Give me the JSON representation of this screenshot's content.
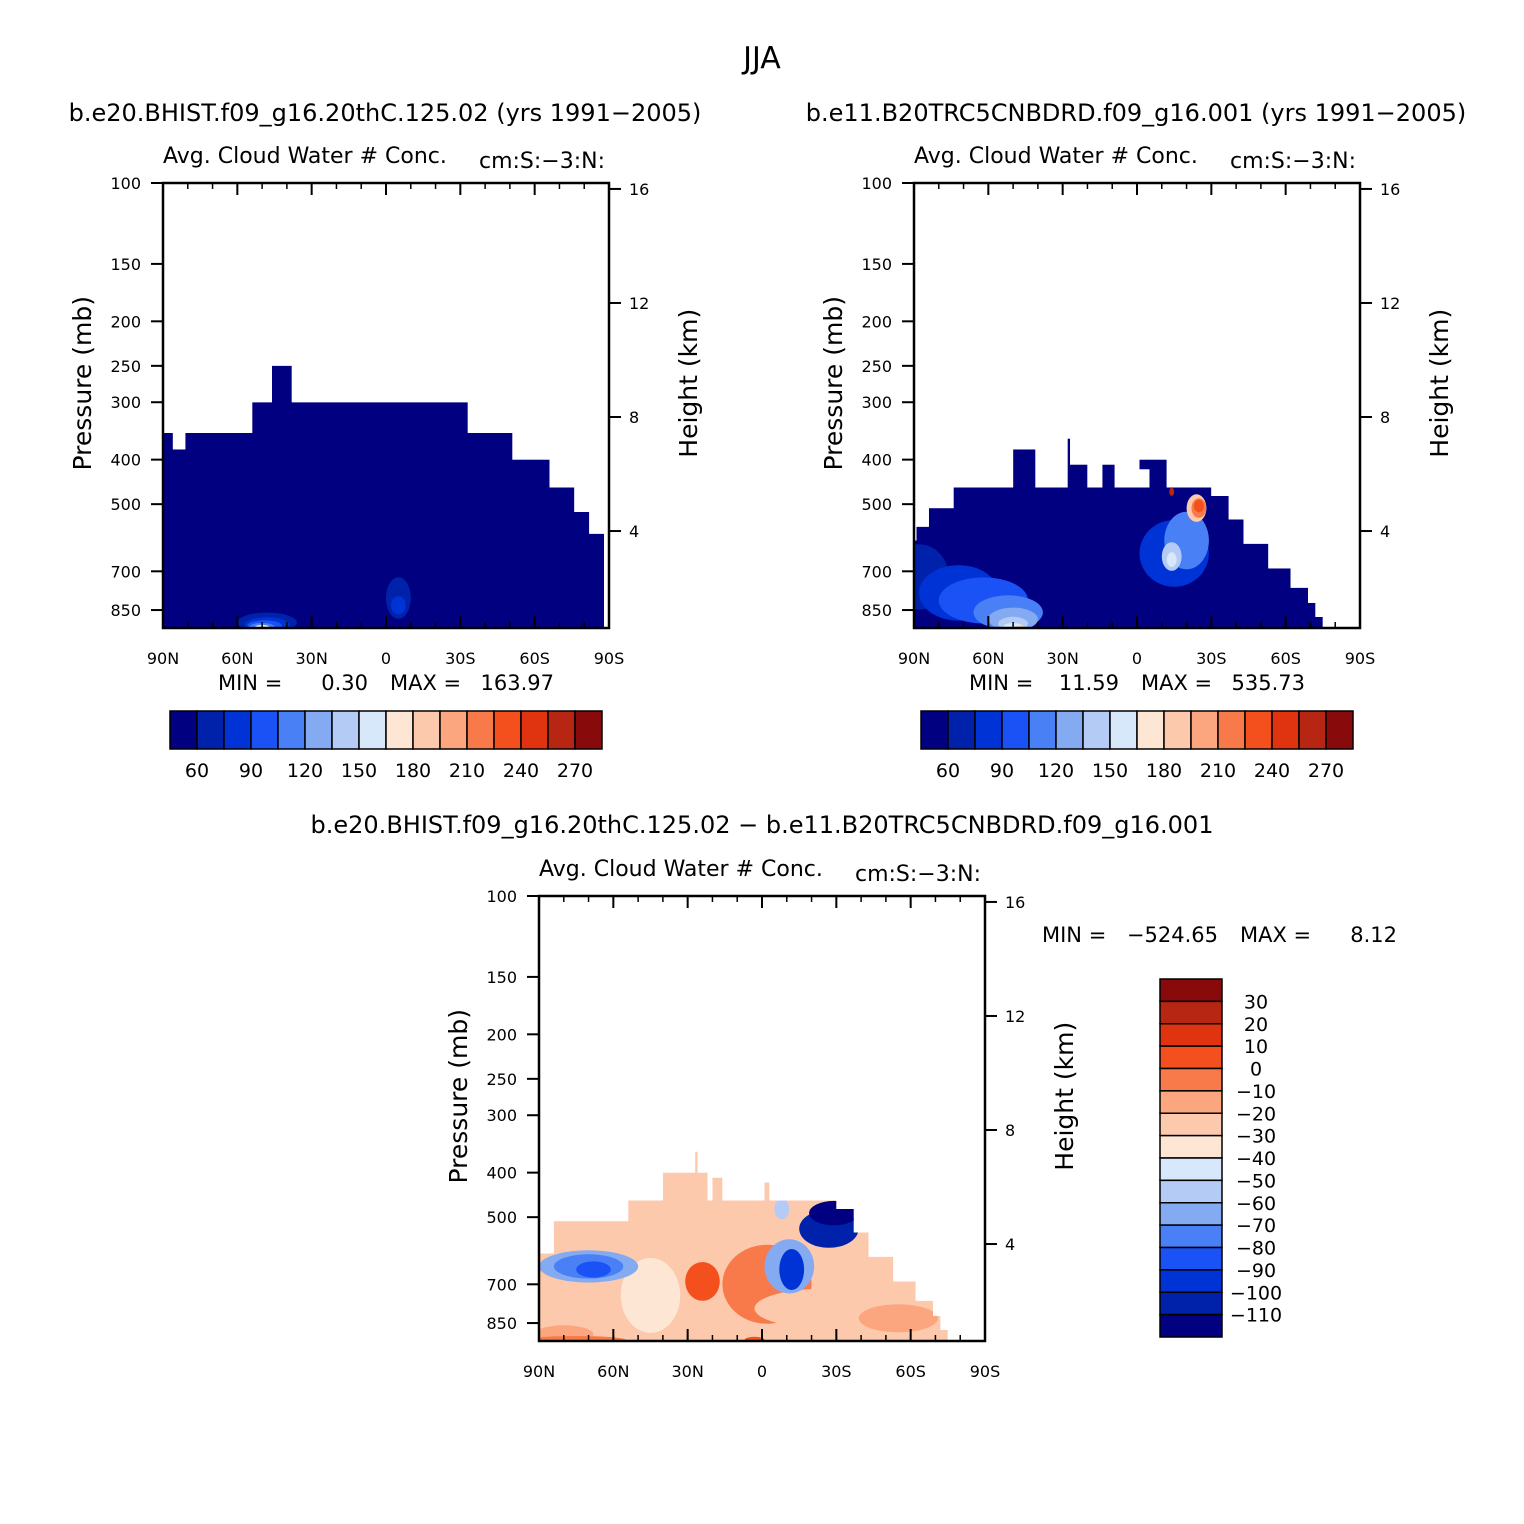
{
  "figure": {
    "season": "JJA",
    "panels": {
      "left_title": "b.e20.BHIST.f09_g16.20thC.125.02 (yrs 1991−2005)",
      "right_title": "b.e11.B20TRC5CNBDRD.f09_g16.001 (yrs 1991−2005)",
      "diff_title": "b.e20.BHIST.f09_g16.20thC.125.02 − b.e11.B20TRC5CNBDRD.f09_g16.001"
    }
  },
  "colors": {
    "seq": [
      "#000080",
      "#0022aa",
      "#0033d6",
      "#1a52f5",
      "#4a80f5",
      "#84aaf2",
      "#b3cbf5",
      "#d8e8fb",
      "#fde7d4",
      "#fdc9ac",
      "#fba67e",
      "#f87a4a",
      "#f3501e",
      "#e03410",
      "#b72612",
      "#880a0a"
    ],
    "diff": [
      "#000080",
      "#0022aa",
      "#0033d6",
      "#1a52f5",
      "#4a80f5",
      "#84aaf2",
      "#b3cbf5",
      "#d8e8fb",
      "#fde7d4",
      "#fdc9ac",
      "#fba67e",
      "#f87a4a",
      "#f3501e",
      "#e03410",
      "#b72612",
      "#880a0a"
    ]
  },
  "chart_data": [
    {
      "type": "heatmap",
      "id": "panel-left",
      "title": "Avg. Cloud Water # Conc.",
      "units": "cm:S:−3:N:",
      "xlabel": "",
      "ylabel": "Pressure (mb)",
      "y2label": "Height (km)",
      "x_ticks": [
        "90N",
        "60N",
        "30N",
        "0",
        "30S",
        "60S",
        "90S"
      ],
      "x_range": [
        90,
        -90
      ],
      "y_ticks": [
        100,
        150,
        200,
        250,
        300,
        400,
        500,
        700,
        850
      ],
      "y_range": [
        100,
        930
      ],
      "y2_ticks": [
        16,
        12,
        8,
        4
      ],
      "min_label": "MIN =",
      "min_value": "0.30",
      "max_label": "MAX =",
      "max_value": "163.97",
      "colorbar_labels": [
        "60",
        "90",
        "120",
        "150",
        "180",
        "210",
        "240",
        "270"
      ],
      "outline": [
        [
          90,
          350
        ],
        [
          86,
          350
        ],
        [
          86,
          380
        ],
        [
          81,
          380
        ],
        [
          81,
          350
        ],
        [
          54,
          350
        ],
        [
          54,
          300
        ],
        [
          46,
          300
        ],
        [
          46,
          250
        ],
        [
          38,
          250
        ],
        [
          38,
          300
        ],
        [
          -33,
          300
        ],
        [
          -33,
          350
        ],
        [
          -51,
          350
        ],
        [
          -51,
          400
        ],
        [
          -66,
          400
        ],
        [
          -66,
          460
        ],
        [
          -76,
          460
        ],
        [
          -76,
          520
        ],
        [
          -82,
          520
        ],
        [
          -82,
          580
        ],
        [
          -88,
          580
        ],
        [
          -88,
          930
        ],
        [
          90,
          930
        ]
      ],
      "blobs": [
        {
          "lon": 48,
          "p": 905,
          "rx": 12,
          "ry": 95,
          "level": 1
        },
        {
          "lon": 48,
          "p": 915,
          "rx": 9,
          "ry": 70,
          "level": 2
        },
        {
          "lon": 49,
          "p": 920,
          "rx": 7,
          "ry": 45,
          "level": 3
        },
        {
          "lon": 50,
          "p": 925,
          "rx": 5,
          "ry": 25,
          "level": 4
        },
        {
          "lon": 50,
          "p": 928,
          "rx": 3,
          "ry": 12,
          "level": 7
        },
        {
          "lon": -5,
          "p": 800,
          "rx": 5,
          "ry": 150,
          "level": 1
        },
        {
          "lon": -5,
          "p": 830,
          "rx": 3,
          "ry": 60,
          "level": 2
        }
      ]
    },
    {
      "type": "heatmap",
      "id": "panel-right",
      "title": "Avg. Cloud Water # Conc.",
      "units": "cm:S:−3:N:",
      "xlabel": "",
      "ylabel": "Pressure (mb)",
      "y2label": "Height (km)",
      "x_ticks": [
        "90N",
        "60N",
        "30N",
        "0",
        "30S",
        "60S",
        "90S"
      ],
      "x_range": [
        90,
        -90
      ],
      "y_ticks": [
        100,
        150,
        200,
        250,
        300,
        400,
        500,
        700,
        850
      ],
      "y_range": [
        100,
        930
      ],
      "y2_ticks": [
        16,
        12,
        8,
        4
      ],
      "min_label": "MIN =",
      "min_value": "11.59",
      "max_label": "MAX =",
      "max_value": "535.73",
      "colorbar_labels": [
        "60",
        "90",
        "120",
        "150",
        "180",
        "210",
        "240",
        "270"
      ],
      "outline": [
        [
          90,
          600
        ],
        [
          89,
          600
        ],
        [
          89,
          560
        ],
        [
          84,
          560
        ],
        [
          84,
          510
        ],
        [
          74,
          510
        ],
        [
          74,
          460
        ],
        [
          50,
          460
        ],
        [
          50,
          380
        ],
        [
          41,
          380
        ],
        [
          41,
          460
        ],
        [
          28,
          460
        ],
        [
          28,
          360
        ],
        [
          27,
          360
        ],
        [
          27,
          410
        ],
        [
          20,
          410
        ],
        [
          20,
          460
        ],
        [
          14,
          460
        ],
        [
          14,
          410
        ],
        [
          9,
          410
        ],
        [
          9,
          460
        ],
        [
          -5,
          460
        ],
        [
          -5,
          420
        ],
        [
          -1,
          420
        ],
        [
          -1,
          400
        ],
        [
          -12,
          400
        ],
        [
          -12,
          460
        ],
        [
          -30,
          460
        ],
        [
          -30,
          480
        ],
        [
          -37,
          480
        ],
        [
          -37,
          540
        ],
        [
          -43,
          540
        ],
        [
          -43,
          610
        ],
        [
          -53,
          610
        ],
        [
          -53,
          690
        ],
        [
          -62,
          690
        ],
        [
          -62,
          760
        ],
        [
          -69,
          760
        ],
        [
          -69,
          820
        ],
        [
          -72,
          820
        ],
        [
          -72,
          880
        ],
        [
          -75,
          880
        ],
        [
          -75,
          930
        ],
        [
          90,
          930
        ]
      ],
      "blobs": [
        {
          "lon": 88,
          "p": 720,
          "rx": 12,
          "ry": 220,
          "level": 1
        },
        {
          "lon": 72,
          "p": 780,
          "rx": 16,
          "ry": 200,
          "level": 2
        },
        {
          "lon": 62,
          "p": 810,
          "rx": 18,
          "ry": 170,
          "level": 3
        },
        {
          "lon": 52,
          "p": 860,
          "rx": 14,
          "ry": 130,
          "level": 4
        },
        {
          "lon": 50,
          "p": 890,
          "rx": 10,
          "ry": 90,
          "level": 5
        },
        {
          "lon": 50,
          "p": 910,
          "rx": 6,
          "ry": 50,
          "level": 6
        },
        {
          "lon": 50,
          "p": 925,
          "rx": 4,
          "ry": 25,
          "level": 7
        },
        {
          "lon": 47,
          "p": 930,
          "rx": 2,
          "ry": 8,
          "level": 9
        },
        {
          "lon": -15,
          "p": 640,
          "rx": 14,
          "ry": 200,
          "level": 2
        },
        {
          "lon": -20,
          "p": 600,
          "rx": 9,
          "ry": 160,
          "level": 4
        },
        {
          "lon": -14,
          "p": 650,
          "rx": 4,
          "ry": 80,
          "level": 6
        },
        {
          "lon": -14,
          "p": 660,
          "rx": 2,
          "ry": 35,
          "level": 7
        },
        {
          "lon": -24,
          "p": 510,
          "rx": 4,
          "ry": 60,
          "level": 9
        },
        {
          "lon": -25,
          "p": 510,
          "rx": 3,
          "ry": 40,
          "level": 11
        },
        {
          "lon": -25,
          "p": 505,
          "rx": 2,
          "ry": 22,
          "level": 12
        },
        {
          "lon": -14,
          "p": 470,
          "rx": 1,
          "ry": 10,
          "level": 14
        }
      ]
    },
    {
      "type": "heatmap",
      "id": "panel-diff",
      "title": "Avg. Cloud Water # Conc.",
      "units": "cm:S:−3:N:",
      "xlabel": "",
      "ylabel": "Pressure (mb)",
      "y2label": "Height (km)",
      "x_ticks": [
        "90N",
        "60N",
        "30N",
        "0",
        "30S",
        "60S",
        "90S"
      ],
      "x_range": [
        90,
        -90
      ],
      "y_ticks": [
        100,
        150,
        200,
        250,
        300,
        400,
        500,
        700,
        850
      ],
      "y_range": [
        100,
        930
      ],
      "y2_ticks": [
        16,
        12,
        8,
        4
      ],
      "min_label": "MIN =",
      "min_value": "−524.65",
      "max_label": "MAX =",
      "max_value": "8.12",
      "colorbar_labels": [
        "30",
        "20",
        "10",
        "0",
        "−10",
        "−20",
        "−30",
        "−40",
        "−50",
        "−60",
        "−70",
        "−80",
        "−90",
        "−100",
        "−110"
      ],
      "outline": [
        [
          89,
          600
        ],
        [
          84,
          600
        ],
        [
          84,
          510
        ],
        [
          54,
          510
        ],
        [
          54,
          460
        ],
        [
          40,
          460
        ],
        [
          40,
          400
        ],
        [
          27,
          400
        ],
        [
          27,
          360
        ],
        [
          26,
          360
        ],
        [
          26,
          400
        ],
        [
          22,
          400
        ],
        [
          22,
          460
        ],
        [
          20,
          460
        ],
        [
          20,
          410
        ],
        [
          16,
          410
        ],
        [
          16,
          460
        ],
        [
          -1,
          460
        ],
        [
          -1,
          420
        ],
        [
          -3,
          420
        ],
        [
          -3,
          460
        ],
        [
          -12,
          460
        ],
        [
          -12,
          460
        ],
        [
          -30,
          460
        ],
        [
          -30,
          480
        ],
        [
          -37,
          480
        ],
        [
          -37,
          540
        ],
        [
          -43,
          540
        ],
        [
          -43,
          610
        ],
        [
          -53,
          610
        ],
        [
          -53,
          690
        ],
        [
          -62,
          690
        ],
        [
          -62,
          760
        ],
        [
          -69,
          760
        ],
        [
          -69,
          820
        ],
        [
          -72,
          820
        ],
        [
          -72,
          880
        ],
        [
          -75,
          880
        ],
        [
          -75,
          930
        ],
        [
          90,
          930
        ],
        [
          90,
          600
        ]
      ],
      "blobs": [
        {
          "lon": 45,
          "p": 740,
          "rx": 12,
          "ry": 260,
          "level": 8
        },
        {
          "lon": -2,
          "p": 700,
          "rx": 18,
          "ry": 260,
          "level": 11
        },
        {
          "lon": 24,
          "p": 690,
          "rx": 7,
          "ry": 120,
          "level": 12
        },
        {
          "lon": -25,
          "p": 790,
          "rx": 28,
          "ry": 140,
          "level": 9
        },
        {
          "lon": -55,
          "p": 830,
          "rx": 16,
          "ry": 100,
          "level": 10
        },
        {
          "lon": 70,
          "p": 640,
          "rx": 20,
          "ry": 90,
          "level": 5
        },
        {
          "lon": 70,
          "p": 640,
          "rx": 14,
          "ry": 65,
          "level": 4
        },
        {
          "lon": 68,
          "p": 650,
          "rx": 7,
          "ry": 40,
          "level": 3
        },
        {
          "lon": 80,
          "p": 900,
          "rx": 12,
          "ry": 70,
          "level": 10
        },
        {
          "lon": 75,
          "p": 925,
          "rx": 20,
          "ry": 25,
          "level": 11
        },
        {
          "lon": -11,
          "p": 640,
          "rx": 10,
          "ry": 160,
          "level": 5
        },
        {
          "lon": -12,
          "p": 650,
          "rx": 5,
          "ry": 120,
          "level": 2
        },
        {
          "lon": -27,
          "p": 530,
          "rx": 12,
          "ry": 90,
          "level": 1
        },
        {
          "lon": -29,
          "p": 490,
          "rx": 10,
          "ry": 50,
          "level": 0
        },
        {
          "lon": -8,
          "p": 480,
          "rx": 3,
          "ry": 40,
          "level": 6
        },
        {
          "lon": 3,
          "p": 925,
          "rx": 4,
          "ry": 12,
          "level": 12
        }
      ]
    }
  ]
}
